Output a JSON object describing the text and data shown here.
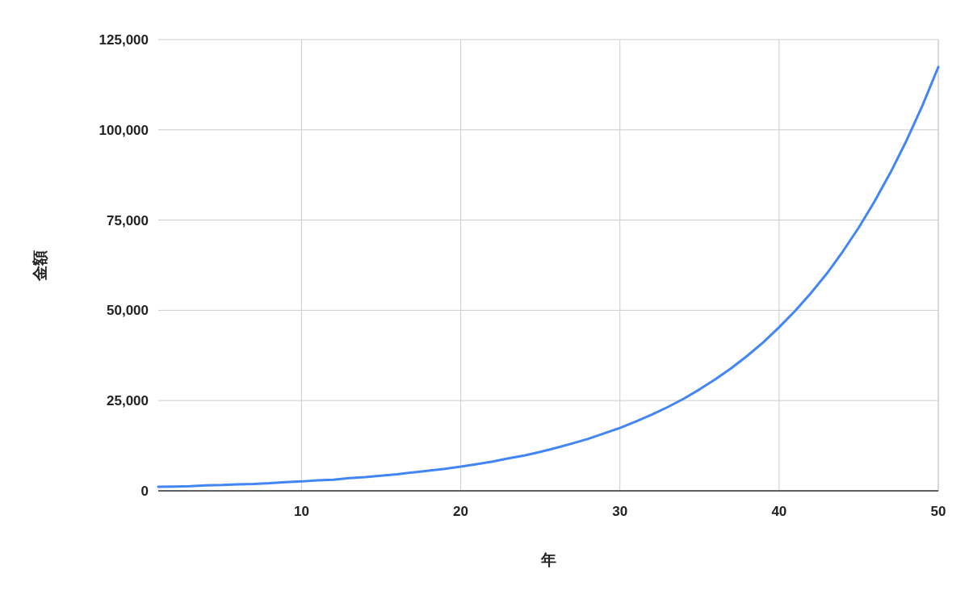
{
  "chart_data": {
    "type": "line",
    "xlabel": "年",
    "ylabel": "金額",
    "x": [
      1,
      2,
      3,
      4,
      5,
      6,
      7,
      8,
      9,
      10,
      11,
      12,
      13,
      14,
      15,
      16,
      17,
      18,
      19,
      20,
      21,
      22,
      23,
      24,
      25,
      26,
      27,
      28,
      29,
      30,
      31,
      32,
      33,
      34,
      35,
      36,
      37,
      38,
      39,
      40,
      41,
      42,
      43,
      44,
      45,
      46,
      47,
      48,
      49,
      50
    ],
    "series": [
      {
        "color": "#4285f4",
        "values": [
          1100,
          1200,
          1300,
          1500,
          1600,
          1800,
          1900,
          2100,
          2400,
          2600,
          2900,
          3100,
          3500,
          3800,
          4200,
          4600,
          5100,
          5600,
          6100,
          6700,
          7400,
          8100,
          9000,
          9800,
          10800,
          11900,
          13100,
          14400,
          15900,
          17400,
          19200,
          21100,
          23200,
          25500,
          28100,
          30900,
          34000,
          37400,
          41100,
          45300,
          49800,
          54800,
          60200,
          66300,
          72900,
          80200,
          88200,
          97000,
          106700,
          117400
        ]
      }
    ],
    "xlim": [
      1,
      50
    ],
    "xticks": [
      10,
      20,
      30,
      40,
      50
    ],
    "ylim": [
      0,
      125000
    ],
    "yticks": [
      {
        "value": 0,
        "label": "0"
      },
      {
        "value": 25000,
        "label": "25,000"
      },
      {
        "value": 50000,
        "label": "50,000"
      },
      {
        "value": 75000,
        "label": "75,000"
      },
      {
        "value": 100000,
        "label": "100,000"
      },
      {
        "value": 125000,
        "label": "125,000"
      }
    ],
    "grid": true,
    "marker": "none",
    "line_style": "solid"
  }
}
